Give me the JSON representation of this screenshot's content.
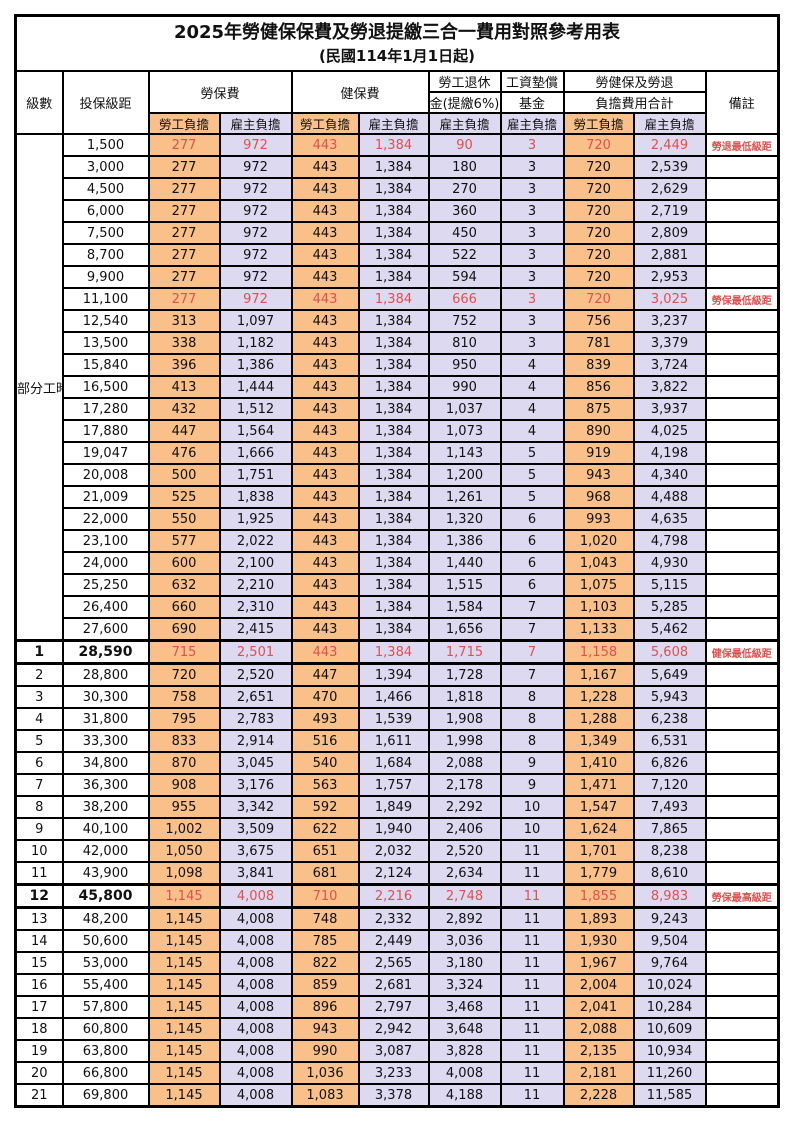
{
  "title": "2025年勞健保保費及勞退提繳三合一費用對照參考用表",
  "subtitle": "(民國114年1月1日起)",
  "colors": {
    "employee_column_bg": "#f9c08a",
    "employer_column_bg": "#dcd9f0",
    "highlight_text": "#e0504f",
    "grid_border": "#000000"
  },
  "header": {
    "level": "級數",
    "bracket": "投保級距",
    "labor_fee": "勞保費",
    "health_fee": "健保費",
    "pension_line1": "勞工退休",
    "pension_line2": "金(提繳6%)",
    "wage_fund_line1": "工資墊償",
    "wage_fund_line2": "基金",
    "total_line1": "勞健保及勞退",
    "total_line2": "負擔費用合計",
    "remark": "備註",
    "employee_label": "勞工負擔",
    "employer_label": "雇主負擔"
  },
  "table": {
    "part_time_label": "部分工時",
    "part_time_rows": 23,
    "rows": [
      {
        "level": "",
        "bracket": "1,500",
        "values": [
          "277",
          "972",
          "443",
          "1,384",
          "90",
          "3",
          "720",
          "2,449"
        ],
        "remark": "勞退最低級距",
        "red": true,
        "em": false
      },
      {
        "level": "",
        "bracket": "3,000",
        "values": [
          "277",
          "972",
          "443",
          "1,384",
          "180",
          "3",
          "720",
          "2,539"
        ],
        "remark": "",
        "red": false,
        "em": false
      },
      {
        "level": "",
        "bracket": "4,500",
        "values": [
          "277",
          "972",
          "443",
          "1,384",
          "270",
          "3",
          "720",
          "2,629"
        ],
        "remark": "",
        "red": false,
        "em": false
      },
      {
        "level": "",
        "bracket": "6,000",
        "values": [
          "277",
          "972",
          "443",
          "1,384",
          "360",
          "3",
          "720",
          "2,719"
        ],
        "remark": "",
        "red": false,
        "em": false
      },
      {
        "level": "",
        "bracket": "7,500",
        "values": [
          "277",
          "972",
          "443",
          "1,384",
          "450",
          "3",
          "720",
          "2,809"
        ],
        "remark": "",
        "red": false,
        "em": false
      },
      {
        "level": "",
        "bracket": "8,700",
        "values": [
          "277",
          "972",
          "443",
          "1,384",
          "522",
          "3",
          "720",
          "2,881"
        ],
        "remark": "",
        "red": false,
        "em": false
      },
      {
        "level": "",
        "bracket": "9,900",
        "values": [
          "277",
          "972",
          "443",
          "1,384",
          "594",
          "3",
          "720",
          "2,953"
        ],
        "remark": "",
        "red": false,
        "em": false
      },
      {
        "level": "",
        "bracket": "11,100",
        "values": [
          "277",
          "972",
          "443",
          "1,384",
          "666",
          "3",
          "720",
          "3,025"
        ],
        "remark": "勞保最低級距",
        "red": true,
        "em": false
      },
      {
        "level": "",
        "bracket": "12,540",
        "values": [
          "313",
          "1,097",
          "443",
          "1,384",
          "752",
          "3",
          "756",
          "3,237"
        ],
        "remark": "",
        "red": false,
        "em": false
      },
      {
        "level": "",
        "bracket": "13,500",
        "values": [
          "338",
          "1,182",
          "443",
          "1,384",
          "810",
          "3",
          "781",
          "3,379"
        ],
        "remark": "",
        "red": false,
        "em": false
      },
      {
        "level": "",
        "bracket": "15,840",
        "values": [
          "396",
          "1,386",
          "443",
          "1,384",
          "950",
          "4",
          "839",
          "3,724"
        ],
        "remark": "",
        "red": false,
        "em": false
      },
      {
        "level": "",
        "bracket": "16,500",
        "values": [
          "413",
          "1,444",
          "443",
          "1,384",
          "990",
          "4",
          "856",
          "3,822"
        ],
        "remark": "",
        "red": false,
        "em": false
      },
      {
        "level": "",
        "bracket": "17,280",
        "values": [
          "432",
          "1,512",
          "443",
          "1,384",
          "1,037",
          "4",
          "875",
          "3,937"
        ],
        "remark": "",
        "red": false,
        "em": false
      },
      {
        "level": "",
        "bracket": "17,880",
        "values": [
          "447",
          "1,564",
          "443",
          "1,384",
          "1,073",
          "4",
          "890",
          "4,025"
        ],
        "remark": "",
        "red": false,
        "em": false
      },
      {
        "level": "",
        "bracket": "19,047",
        "values": [
          "476",
          "1,666",
          "443",
          "1,384",
          "1,143",
          "5",
          "919",
          "4,198"
        ],
        "remark": "",
        "red": false,
        "em": false
      },
      {
        "level": "",
        "bracket": "20,008",
        "values": [
          "500",
          "1,751",
          "443",
          "1,384",
          "1,200",
          "5",
          "943",
          "4,340"
        ],
        "remark": "",
        "red": false,
        "em": false
      },
      {
        "level": "",
        "bracket": "21,009",
        "values": [
          "525",
          "1,838",
          "443",
          "1,384",
          "1,261",
          "5",
          "968",
          "4,488"
        ],
        "remark": "",
        "red": false,
        "em": false
      },
      {
        "level": "",
        "bracket": "22,000",
        "values": [
          "550",
          "1,925",
          "443",
          "1,384",
          "1,320",
          "6",
          "993",
          "4,635"
        ],
        "remark": "",
        "red": false,
        "em": false
      },
      {
        "level": "",
        "bracket": "23,100",
        "values": [
          "577",
          "2,022",
          "443",
          "1,384",
          "1,386",
          "6",
          "1,020",
          "4,798"
        ],
        "remark": "",
        "red": false,
        "em": false
      },
      {
        "level": "",
        "bracket": "24,000",
        "values": [
          "600",
          "2,100",
          "443",
          "1,384",
          "1,440",
          "6",
          "1,043",
          "4,930"
        ],
        "remark": "",
        "red": false,
        "em": false
      },
      {
        "level": "",
        "bracket": "25,250",
        "values": [
          "632",
          "2,210",
          "443",
          "1,384",
          "1,515",
          "6",
          "1,075",
          "5,115"
        ],
        "remark": "",
        "red": false,
        "em": false
      },
      {
        "level": "",
        "bracket": "26,400",
        "values": [
          "660",
          "2,310",
          "443",
          "1,384",
          "1,584",
          "7",
          "1,103",
          "5,285"
        ],
        "remark": "",
        "red": false,
        "em": false
      },
      {
        "level": "",
        "bracket": "27,600",
        "values": [
          "690",
          "2,415",
          "443",
          "1,384",
          "1,656",
          "7",
          "1,133",
          "5,462"
        ],
        "remark": "",
        "red": false,
        "em": false
      },
      {
        "level": "1",
        "bracket": "28,590",
        "values": [
          "715",
          "2,501",
          "443",
          "1,384",
          "1,715",
          "7",
          "1,158",
          "5,608"
        ],
        "remark": "健保最低級距",
        "red": true,
        "em": true
      },
      {
        "level": "2",
        "bracket": "28,800",
        "values": [
          "720",
          "2,520",
          "447",
          "1,394",
          "1,728",
          "7",
          "1,167",
          "5,649"
        ],
        "remark": "",
        "red": false,
        "em": false
      },
      {
        "level": "3",
        "bracket": "30,300",
        "values": [
          "758",
          "2,651",
          "470",
          "1,466",
          "1,818",
          "8",
          "1,228",
          "5,943"
        ],
        "remark": "",
        "red": false,
        "em": false
      },
      {
        "level": "4",
        "bracket": "31,800",
        "values": [
          "795",
          "2,783",
          "493",
          "1,539",
          "1,908",
          "8",
          "1,288",
          "6,238"
        ],
        "remark": "",
        "red": false,
        "em": false
      },
      {
        "level": "5",
        "bracket": "33,300",
        "values": [
          "833",
          "2,914",
          "516",
          "1,611",
          "1,998",
          "8",
          "1,349",
          "6,531"
        ],
        "remark": "",
        "red": false,
        "em": false
      },
      {
        "level": "6",
        "bracket": "34,800",
        "values": [
          "870",
          "3,045",
          "540",
          "1,684",
          "2,088",
          "9",
          "1,410",
          "6,826"
        ],
        "remark": "",
        "red": false,
        "em": false
      },
      {
        "level": "7",
        "bracket": "36,300",
        "values": [
          "908",
          "3,176",
          "563",
          "1,757",
          "2,178",
          "9",
          "1,471",
          "7,120"
        ],
        "remark": "",
        "red": false,
        "em": false
      },
      {
        "level": "8",
        "bracket": "38,200",
        "values": [
          "955",
          "3,342",
          "592",
          "1,849",
          "2,292",
          "10",
          "1,547",
          "7,493"
        ],
        "remark": "",
        "red": false,
        "em": false
      },
      {
        "level": "9",
        "bracket": "40,100",
        "values": [
          "1,002",
          "3,509",
          "622",
          "1,940",
          "2,406",
          "10",
          "1,624",
          "7,865"
        ],
        "remark": "",
        "red": false,
        "em": false
      },
      {
        "level": "10",
        "bracket": "42,000",
        "values": [
          "1,050",
          "3,675",
          "651",
          "2,032",
          "2,520",
          "11",
          "1,701",
          "8,238"
        ],
        "remark": "",
        "red": false,
        "em": false
      },
      {
        "level": "11",
        "bracket": "43,900",
        "values": [
          "1,098",
          "3,841",
          "681",
          "2,124",
          "2,634",
          "11",
          "1,779",
          "8,610"
        ],
        "remark": "",
        "red": false,
        "em": false
      },
      {
        "level": "12",
        "bracket": "45,800",
        "values": [
          "1,145",
          "4,008",
          "710",
          "2,216",
          "2,748",
          "11",
          "1,855",
          "8,983"
        ],
        "remark": "勞保最高級距",
        "red": true,
        "em": true
      },
      {
        "level": "13",
        "bracket": "48,200",
        "values": [
          "1,145",
          "4,008",
          "748",
          "2,332",
          "2,892",
          "11",
          "1,893",
          "9,243"
        ],
        "remark": "",
        "red": false,
        "em": false
      },
      {
        "level": "14",
        "bracket": "50,600",
        "values": [
          "1,145",
          "4,008",
          "785",
          "2,449",
          "3,036",
          "11",
          "1,930",
          "9,504"
        ],
        "remark": "",
        "red": false,
        "em": false
      },
      {
        "level": "15",
        "bracket": "53,000",
        "values": [
          "1,145",
          "4,008",
          "822",
          "2,565",
          "3,180",
          "11",
          "1,967",
          "9,764"
        ],
        "remark": "",
        "red": false,
        "em": false
      },
      {
        "level": "16",
        "bracket": "55,400",
        "values": [
          "1,145",
          "4,008",
          "859",
          "2,681",
          "3,324",
          "11",
          "2,004",
          "10,024"
        ],
        "remark": "",
        "red": false,
        "em": false
      },
      {
        "level": "17",
        "bracket": "57,800",
        "values": [
          "1,145",
          "4,008",
          "896",
          "2,797",
          "3,468",
          "11",
          "2,041",
          "10,284"
        ],
        "remark": "",
        "red": false,
        "em": false
      },
      {
        "level": "18",
        "bracket": "60,800",
        "values": [
          "1,145",
          "4,008",
          "943",
          "2,942",
          "3,648",
          "11",
          "2,088",
          "10,609"
        ],
        "remark": "",
        "red": false,
        "em": false
      },
      {
        "level": "19",
        "bracket": "63,800",
        "values": [
          "1,145",
          "4,008",
          "990",
          "3,087",
          "3,828",
          "11",
          "2,135",
          "10,934"
        ],
        "remark": "",
        "red": false,
        "em": false
      },
      {
        "level": "20",
        "bracket": "66,800",
        "values": [
          "1,145",
          "4,008",
          "1,036",
          "3,233",
          "4,008",
          "11",
          "2,181",
          "11,260"
        ],
        "remark": "",
        "red": false,
        "em": false
      },
      {
        "level": "21",
        "bracket": "69,800",
        "values": [
          "1,145",
          "4,008",
          "1,083",
          "3,378",
          "4,188",
          "11",
          "2,228",
          "11,585"
        ],
        "remark": "",
        "red": false,
        "em": false
      }
    ]
  }
}
